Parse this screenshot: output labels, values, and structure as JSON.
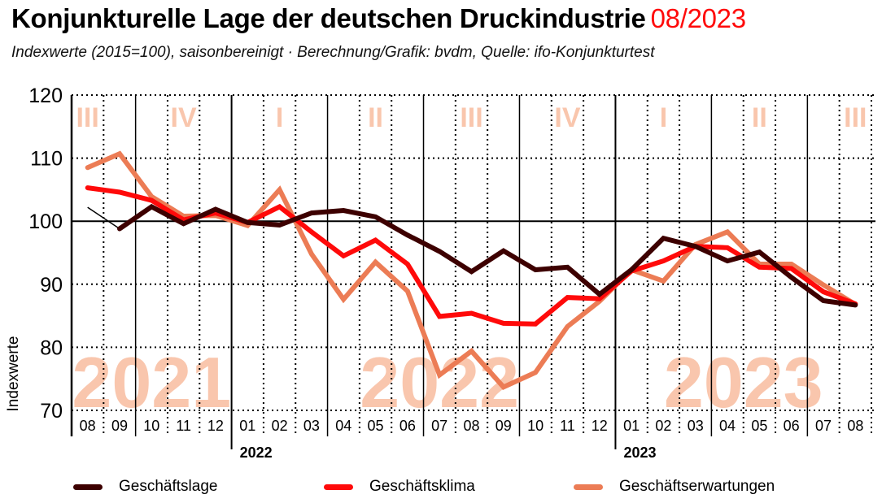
{
  "header": {
    "title": "Konjunkturelle Lage der deutschen Druckindustrie",
    "date": "08/2023",
    "subtitle": "Indexwerte (2015=100), saisonbereinigt · Berechnung/Grafik: bvdm, Quelle: ifo-Konjunkturtest"
  },
  "colors": {
    "geschaeftslage": "#3d0000",
    "geschaeftsklima": "#ff0a0a",
    "geschaeftserwartungen": "#ec7c55",
    "watermark": "#f9c6ad",
    "title_date": "#ff0a0a"
  },
  "chart_data": {
    "type": "line",
    "title": "Konjunkturelle Lage der deutschen Druckindustrie 08/2023",
    "ylabel": "Indexwerte",
    "xlabel": "",
    "ylim": [
      70,
      120
    ],
    "yticks": [
      "70",
      "80",
      "90",
      "100",
      "110",
      "120"
    ],
    "reference_line": 100,
    "grid": true,
    "x": [
      "08",
      "09",
      "10",
      "11",
      "12",
      "01",
      "02",
      "03",
      "04",
      "05",
      "06",
      "07",
      "08",
      "09",
      "10",
      "11",
      "12",
      "01",
      "02",
      "03",
      "04",
      "05",
      "06",
      "07",
      "08"
    ],
    "year_labels": [
      {
        "label": "2022",
        "start_index": 5
      },
      {
        "label": "2023",
        "start_index": 17
      }
    ],
    "year_watermarks": [
      {
        "label": "2021",
        "center_index": 2
      },
      {
        "label": "2022",
        "center_index": 11
      },
      {
        "label": "2023",
        "center_index": 20.5
      }
    ],
    "quarter_labels": [
      {
        "label": "III",
        "center_index": 0
      },
      {
        "label": "IV",
        "center_index": 3
      },
      {
        "label": "I",
        "center_index": 6
      },
      {
        "label": "II",
        "center_index": 9
      },
      {
        "label": "III",
        "center_index": 12
      },
      {
        "label": "IV",
        "center_index": 15
      },
      {
        "label": "I",
        "center_index": 18
      },
      {
        "label": "II",
        "center_index": 21
      },
      {
        "label": "III",
        "center_index": 24
      }
    ],
    "series": [
      {
        "name": "Geschäftslage",
        "key": "geschaeftslage",
        "first_value_thin": true,
        "values": [
          102.2,
          98.8,
          102.3,
          99.6,
          101.9,
          99.8,
          99.4,
          101.3,
          101.7,
          100.7,
          97.8,
          95.2,
          92.0,
          95.3,
          92.3,
          92.7,
          88.4,
          92.3,
          97.3,
          96.0,
          93.7,
          95.1,
          91.1,
          87.4,
          86.7
        ]
      },
      {
        "name": "Geschäftsklima",
        "key": "geschaeftsklima",
        "values": [
          105.3,
          104.6,
          103.3,
          100.2,
          101.3,
          99.8,
          102.3,
          98.3,
          94.5,
          97.0,
          93.2,
          84.9,
          85.4,
          83.8,
          83.7,
          87.9,
          87.7,
          92.1,
          93.7,
          96.0,
          95.8,
          92.7,
          92.5,
          88.8,
          86.9
        ]
      },
      {
        "name": "Geschäftserwartungen",
        "key": "geschaeftserwartungen",
        "values": [
          108.5,
          110.7,
          103.9,
          100.8,
          100.9,
          99.3,
          105.0,
          94.8,
          87.6,
          93.5,
          88.9,
          75.6,
          79.4,
          73.7,
          76.0,
          83.3,
          87.3,
          92.3,
          90.5,
          96.3,
          98.3,
          93.2,
          93.2,
          89.9,
          86.8
        ]
      }
    ],
    "legend_position": "bottom"
  },
  "legend": [
    {
      "label": "Geschäftslage",
      "key": "geschaeftslage"
    },
    {
      "label": "Geschäftsklima",
      "key": "geschaeftsklima"
    },
    {
      "label": "Geschäftserwartungen",
      "key": "geschaeftserwartungen"
    }
  ]
}
